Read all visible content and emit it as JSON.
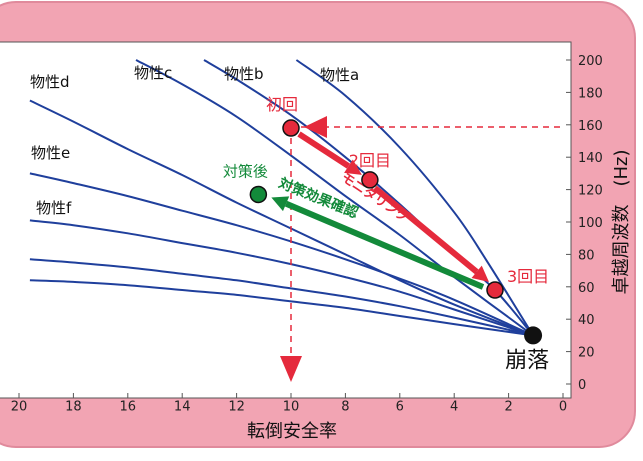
{
  "colors": {
    "frame": "#f2a4b3",
    "frame_edge": "#e08a9c",
    "curve": "#1f3f9c",
    "red": "#e52a3c",
    "green": "#138a3a",
    "black": "#111111"
  },
  "chart_data": {
    "type": "line",
    "xlabel": "転倒安全率",
    "ylabel": "卓越周波数　(Hz)",
    "xlim": [
      20,
      0
    ],
    "ylim": [
      0,
      200
    ],
    "x_ticks": [
      20,
      18,
      16,
      14,
      12,
      10,
      8,
      6,
      4,
      2,
      0
    ],
    "y_ticks": [
      0,
      20,
      40,
      60,
      80,
      100,
      120,
      140,
      160,
      180,
      200
    ],
    "series": [
      {
        "name": "物性a",
        "x": [
          9.8,
          8,
          6,
          4,
          2.8,
          1.1
        ],
        "y": [
          200,
          178,
          146,
          106,
          76,
          30
        ]
      },
      {
        "name": "物性b",
        "x": [
          13.2,
          12,
          10,
          8,
          6,
          4,
          2.5,
          1.1
        ],
        "y": [
          200,
          188,
          166,
          140,
          111,
          80,
          58,
          30
        ]
      },
      {
        "name": "物性c",
        "x": [
          15.7,
          14,
          12,
          10,
          8,
          6,
          4,
          1.1
        ],
        "y": [
          200,
          185,
          165,
          141,
          116,
          92,
          66,
          30
        ]
      },
      {
        "name": "物性d",
        "x": [
          19.6,
          18,
          16,
          14,
          12,
          10,
          8,
          6,
          4,
          1.1
        ],
        "y": [
          175,
          162,
          145,
          129,
          112,
          96,
          80,
          64,
          49,
          30
        ]
      },
      {
        "name": "物性e",
        "x": [
          19.6,
          18,
          16,
          14,
          12,
          10,
          8,
          6,
          4,
          1.1
        ],
        "y": [
          130,
          124,
          116,
          107,
          98,
          88,
          77,
          65,
          52,
          30
        ]
      },
      {
        "name": "物性f",
        "x": [
          19.6,
          18,
          16,
          14,
          12,
          10,
          8,
          6,
          4,
          1.1
        ],
        "y": [
          101,
          98,
          93,
          87,
          81,
          74,
          66,
          57,
          46,
          30
        ]
      },
      {
        "name": "",
        "x": [
          19.6,
          18,
          16,
          14,
          12,
          10,
          8,
          6,
          4,
          1.1
        ],
        "y": [
          77,
          75,
          72,
          68,
          64,
          59,
          54,
          48,
          41,
          30
        ]
      },
      {
        "name": "",
        "x": [
          19.6,
          18,
          16,
          14,
          12,
          10,
          8,
          6,
          4,
          1.1
        ],
        "y": [
          64,
          63,
          61,
          58,
          55,
          51,
          47,
          42,
          37,
          30
        ]
      }
    ],
    "points": [
      {
        "label": "初回",
        "x": 10,
        "y": 158,
        "color": "red"
      },
      {
        "label": "2回目",
        "x": 7.1,
        "y": 126,
        "color": "red"
      },
      {
        "label": "3回目",
        "x": 2.5,
        "y": 58,
        "color": "red"
      },
      {
        "label": "対策後",
        "x": 11.2,
        "y": 117,
        "color": "green"
      },
      {
        "label": "崩落",
        "x": 1.1,
        "y": 30,
        "color": "black"
      }
    ],
    "annotations": {
      "monitoring": "モニタリング",
      "confirm": "対策効果確認"
    }
  }
}
